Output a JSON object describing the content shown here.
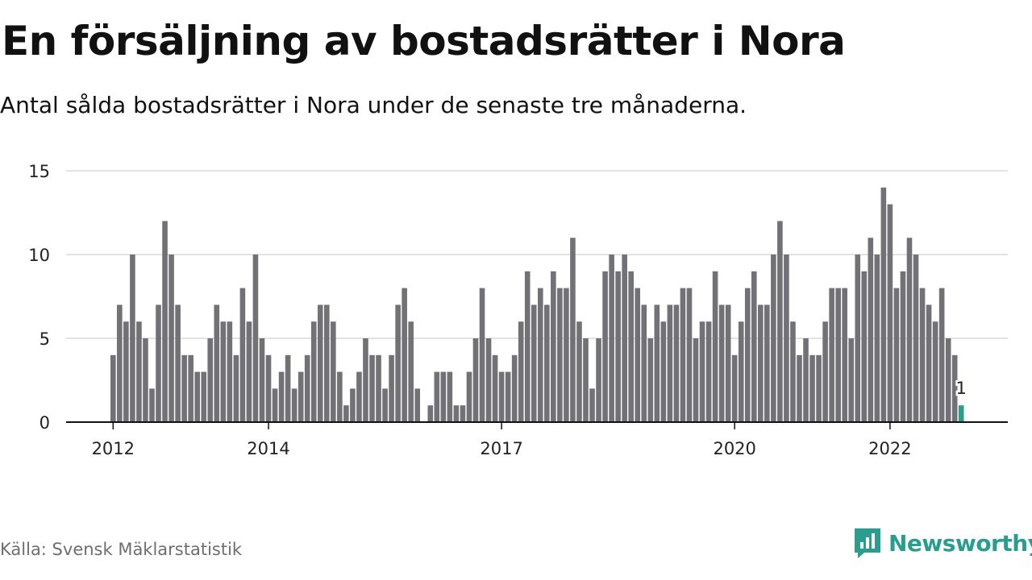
{
  "chart_data": {
    "type": "bar",
    "title": "En försäljning av bostadsrätter i Nora",
    "subtitle": "Antal sålda bostadsrätter i Nora under de senaste tre månaderna.",
    "xlabel": "",
    "ylabel": "",
    "ylim": [
      0,
      15
    ],
    "yticks": [
      0,
      5,
      10,
      15
    ],
    "grid": true,
    "legend": "none",
    "xticks": [
      {
        "label": "2012",
        "index": 0
      },
      {
        "label": "2014",
        "index": 24
      },
      {
        "label": "2017",
        "index": 60
      },
      {
        "label": "2020",
        "index": 96
      },
      {
        "label": "2022",
        "index": 120
      }
    ],
    "values": [
      4,
      7,
      6,
      10,
      6,
      5,
      2,
      7,
      12,
      10,
      7,
      4,
      4,
      3,
      3,
      5,
      7,
      6,
      6,
      4,
      8,
      6,
      10,
      5,
      4,
      2,
      3,
      4,
      2,
      3,
      4,
      6,
      7,
      7,
      6,
      3,
      1,
      2,
      3,
      5,
      4,
      4,
      2,
      4,
      7,
      8,
      6,
      2,
      0,
      1,
      3,
      3,
      3,
      1,
      1,
      3,
      5,
      8,
      5,
      4,
      3,
      3,
      4,
      6,
      9,
      7,
      8,
      7,
      9,
      8,
      8,
      11,
      6,
      5,
      2,
      5,
      9,
      10,
      9,
      10,
      9,
      8,
      7,
      5,
      7,
      6,
      7,
      7,
      8,
      8,
      5,
      6,
      6,
      9,
      7,
      7,
      4,
      6,
      8,
      9,
      7,
      7,
      10,
      12,
      10,
      6,
      4,
      5,
      4,
      4,
      6,
      8,
      8,
      8,
      5,
      10,
      9,
      11,
      10,
      14,
      13,
      8,
      9,
      11,
      10,
      8,
      7,
      6,
      8,
      5,
      4,
      1
    ],
    "highlight": {
      "index": 131,
      "value": 1,
      "label": "1"
    },
    "colors": {
      "bar": "#727176",
      "highlight": "#2a9d8f",
      "grid": "#d8d8d8",
      "axis": "#111111"
    }
  },
  "source": "Källa: Svensk Mäklarstatistik",
  "brand": {
    "name": "Newsworthy",
    "icon": "newsworthy-logo-icon",
    "color": "#2a9d8f"
  }
}
